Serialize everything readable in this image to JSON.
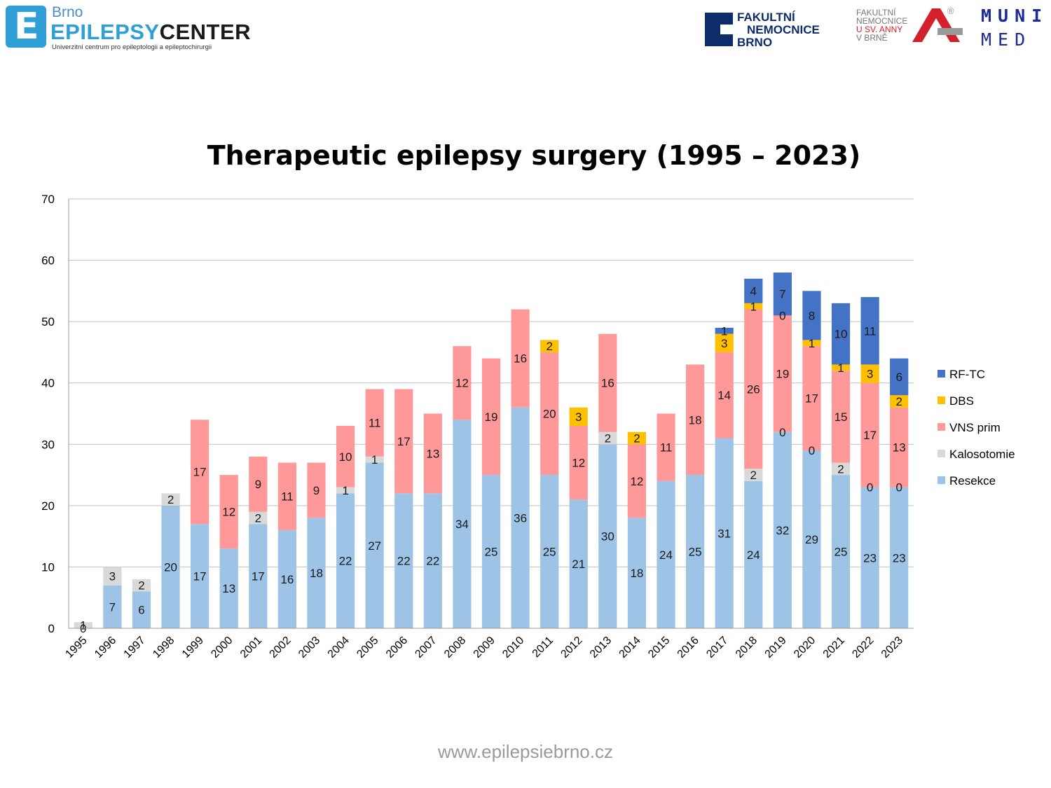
{
  "header": {
    "left_logo": {
      "city": "Brno",
      "brand_part1": "EPILEPSY",
      "brand_part2": "CENTER",
      "subtitle": "Univerzitní centrum pro epileptologii a epileptochirurgii",
      "mark_letter": "E"
    },
    "fnb_logo": {
      "line1": "FAKULTNÍ",
      "line2": "NEMOCNICE",
      "line3": "BRNO",
      "color": "#0d2c6b"
    },
    "fnusa_logo": {
      "line1": "FAKULTNÍ",
      "line2": "NEMOCNICE",
      "line3": "U SV. ANNY",
      "line4": "V BRNĚ",
      "registered": "®"
    },
    "muni_logo": {
      "top": "MUNI",
      "bottom": "MED"
    }
  },
  "chart_data": {
    "type": "bar",
    "stacked": true,
    "title": "Therapeutic epilepsy surgery (1995 – 2023)",
    "categories": [
      "1995",
      "1996",
      "1997",
      "1998",
      "1999",
      "2000",
      "2001",
      "2002",
      "2003",
      "2004",
      "2005",
      "2006",
      "2007",
      "2008",
      "2009",
      "2010",
      "2011",
      "2012",
      "2013",
      "2014",
      "2015",
      "2016",
      "2017",
      "2018",
      "2019",
      "2020",
      "2021",
      "2022",
      "2023"
    ],
    "series": [
      {
        "name": "Resekce",
        "color": "#9dc3e6",
        "values": [
          0,
          7,
          6,
          20,
          17,
          13,
          17,
          16,
          18,
          22,
          27,
          22,
          22,
          34,
          25,
          36,
          25,
          21,
          30,
          18,
          24,
          25,
          31,
          24,
          32,
          29,
          25,
          23,
          23
        ]
      },
      {
        "name": "Kalosotomie",
        "color": "#d9d9d9",
        "values": [
          1,
          3,
          2,
          2,
          null,
          null,
          2,
          null,
          null,
          1,
          1,
          null,
          null,
          null,
          null,
          null,
          null,
          null,
          2,
          null,
          null,
          null,
          null,
          2,
          0,
          0,
          2,
          0,
          0
        ]
      },
      {
        "name": "VNS prim",
        "color": "#ff9999",
        "values": [
          null,
          null,
          null,
          null,
          17,
          12,
          9,
          11,
          9,
          10,
          11,
          17,
          13,
          12,
          19,
          16,
          20,
          12,
          16,
          12,
          11,
          18,
          14,
          26,
          19,
          17,
          15,
          17,
          13
        ]
      },
      {
        "name": "DBS",
        "color": "#ffc000",
        "values": [
          null,
          null,
          null,
          null,
          null,
          null,
          null,
          null,
          null,
          null,
          null,
          null,
          null,
          null,
          null,
          null,
          2,
          3,
          null,
          2,
          null,
          null,
          3,
          1,
          0,
          1,
          1,
          3,
          2
        ]
      },
      {
        "name": "RF-TC",
        "color": "#4472c4",
        "values": [
          null,
          null,
          null,
          null,
          null,
          null,
          null,
          null,
          null,
          null,
          null,
          null,
          null,
          null,
          null,
          null,
          null,
          null,
          null,
          null,
          null,
          null,
          1,
          4,
          7,
          8,
          10,
          11,
          6
        ]
      }
    ],
    "ylim": [
      0,
      70
    ],
    "yticks": [
      0,
      10,
      20,
      30,
      40,
      50,
      60,
      70
    ],
    "grid": true,
    "legend_position": "right",
    "legend_order": [
      "RF-TC",
      "DBS",
      "VNS prim",
      "Kalosotomie",
      "Resekce"
    ]
  },
  "footer": {
    "url": "www.epilepsiebrno.cz"
  }
}
